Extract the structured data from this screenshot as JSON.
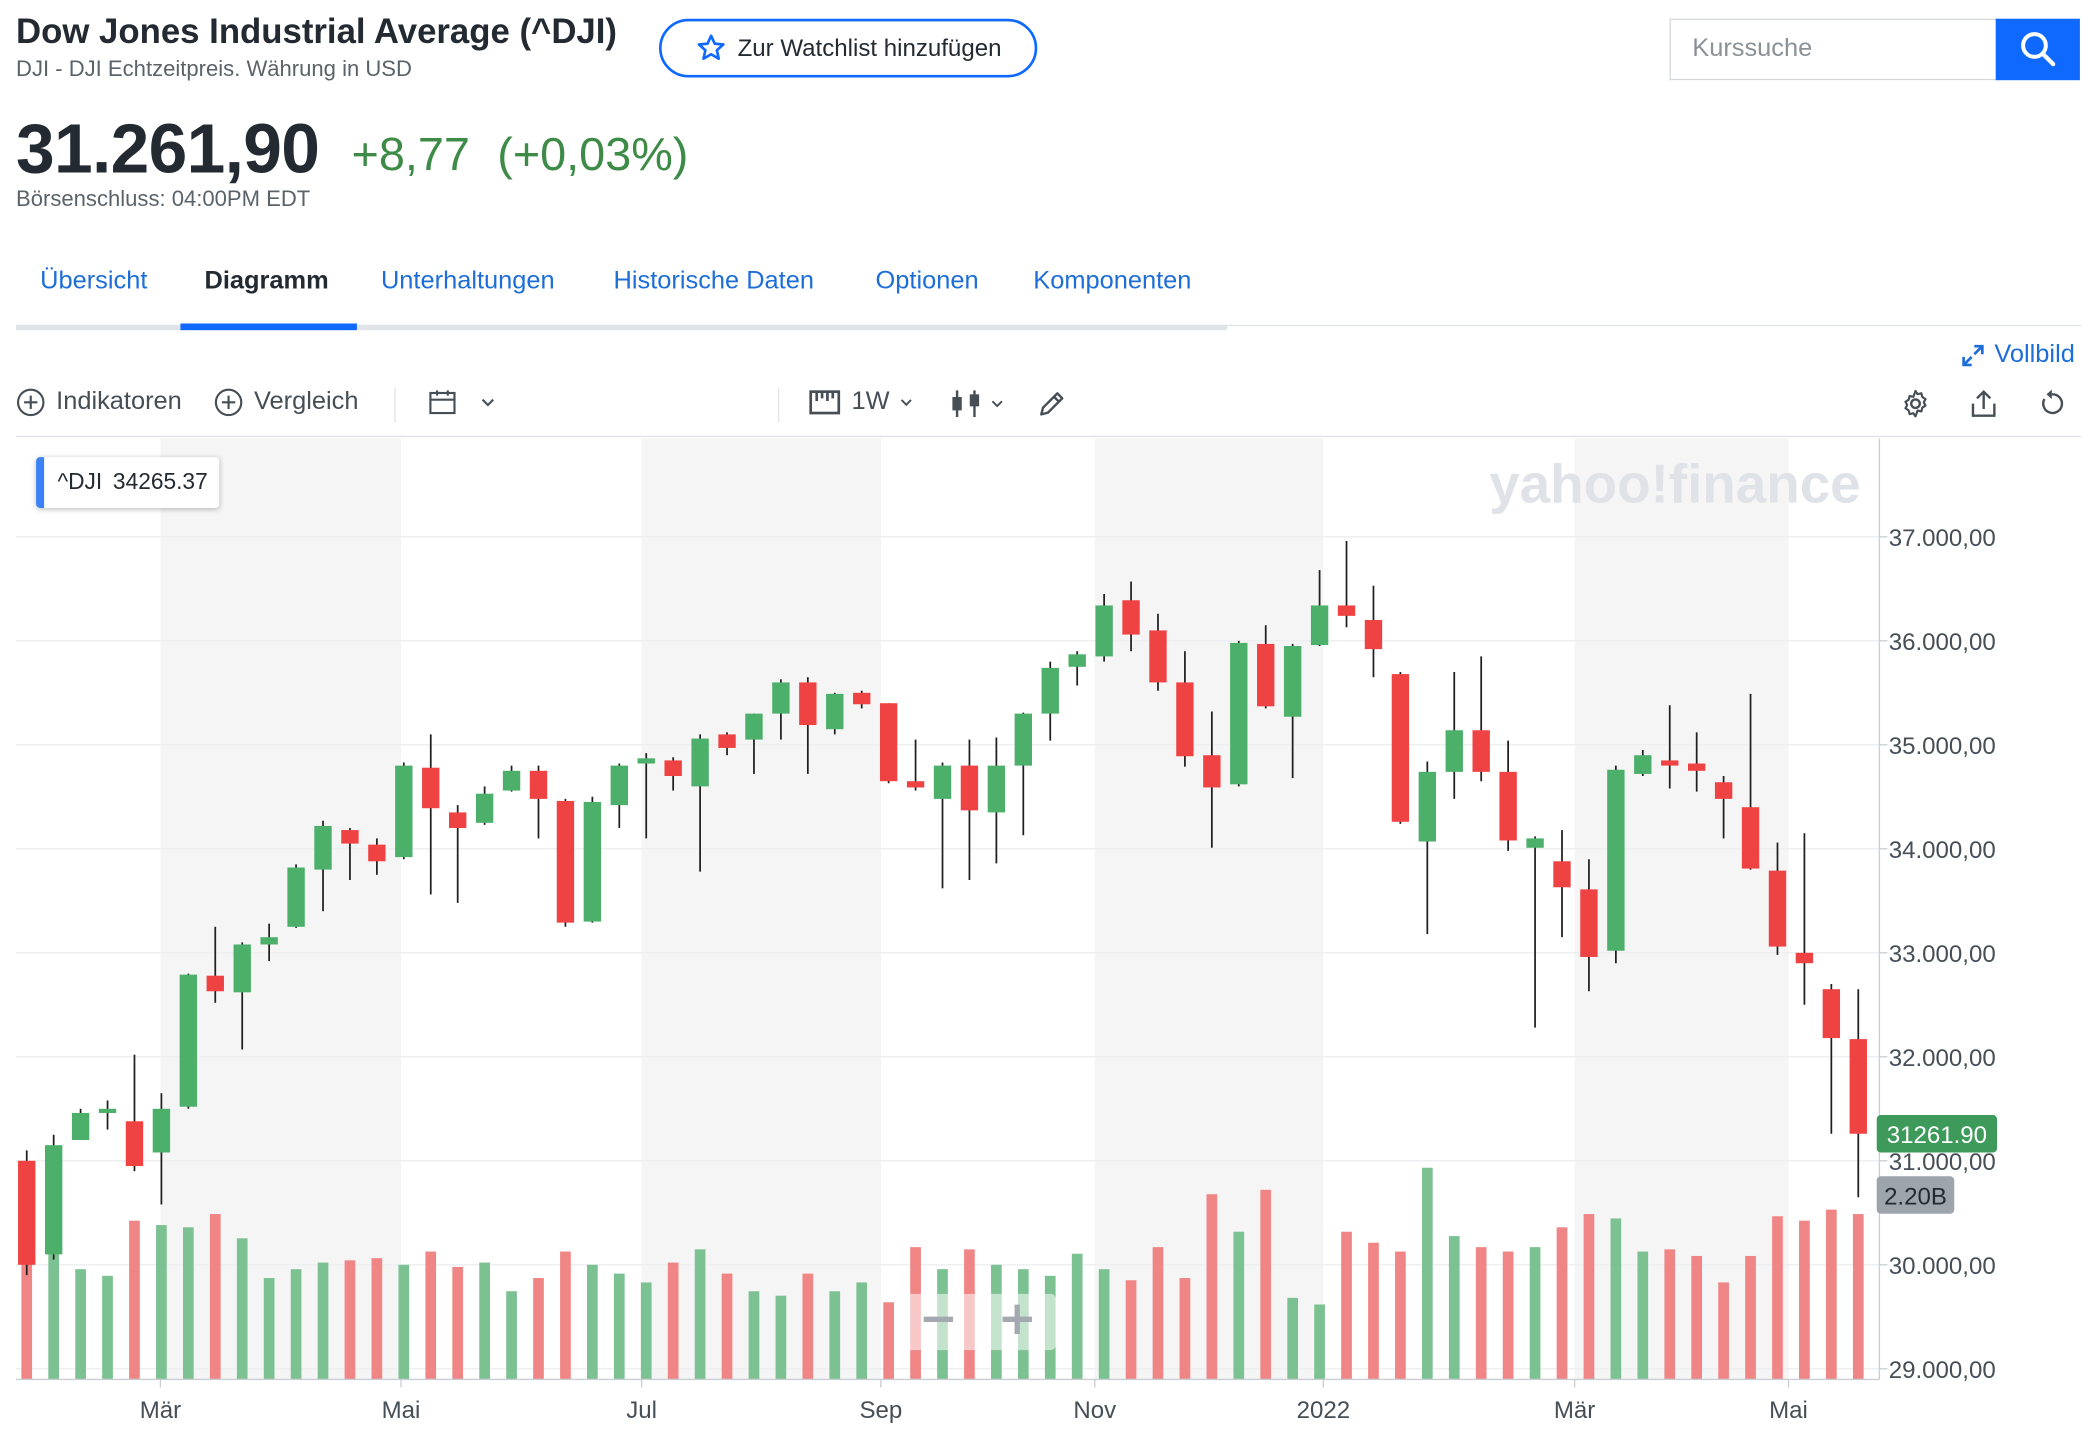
{
  "header": {
    "title": "Dow Jones Industrial Average (^DJI)",
    "subtitle": "DJI - DJI Echtzeitpreis. Währung in USD",
    "watchlist_label": "Zur Watchlist hinzufügen",
    "search_placeholder": "Kurssuche"
  },
  "quote": {
    "price": "31.261,90",
    "change": "+8,77",
    "change_pct": "(+0,03%)",
    "market_time": "Börsenschluss: 04:00PM EDT"
  },
  "tabs": [
    {
      "label": "Übersicht",
      "active": false
    },
    {
      "label": "Diagramm",
      "active": true
    },
    {
      "label": "Unterhaltungen",
      "active": false
    },
    {
      "label": "Historische Daten",
      "active": false
    },
    {
      "label": "Optionen",
      "active": false
    },
    {
      "label": "Komponenten",
      "active": false
    }
  ],
  "toolbar": {
    "fullscreen_label": "Vollbild",
    "indicators_label": "Indikatoren",
    "compare_label": "Vergleich",
    "interval_label": "1W"
  },
  "legend_tooltip": {
    "symbol": "^DJI",
    "value": "34265.37"
  },
  "watermark": "yahoo!finance",
  "colors": {
    "up": "#4caf6a",
    "down": "#ef4343",
    "accent": "#0f69ff",
    "change_positive": "#3d8b47"
  },
  "chart_data": {
    "type": "candlestick",
    "interval": "1W",
    "ylim": [
      28900,
      37600
    ],
    "y_ticks": [
      29000,
      30000,
      31000,
      32000,
      33000,
      34000,
      35000,
      36000,
      37000
    ],
    "y_tick_labels": [
      "29.000,00",
      "30.000,00",
      "31.000,00",
      "32.000,00",
      "33.000,00",
      "34.000,00",
      "35.000,00",
      "36.000,00",
      "37.000,00"
    ],
    "x_tick_labels": [
      "Mär",
      "Mai",
      "Jul",
      "Sep",
      "Nov",
      "2022",
      "Mär",
      "Mai"
    ],
    "last_price_label": "31261.90",
    "last_volume_label": "2.20B",
    "ohlc": [
      {
        "o": 31000,
        "h": 31100,
        "l": 29900,
        "c": 30000
      },
      {
        "o": 30100,
        "h": 31250,
        "l": 30050,
        "c": 31150
      },
      {
        "o": 31200,
        "h": 31500,
        "l": 31200,
        "c": 31460
      },
      {
        "o": 31460,
        "h": 31580,
        "l": 31300,
        "c": 31500
      },
      {
        "o": 31380,
        "h": 32020,
        "l": 30900,
        "c": 30950
      },
      {
        "o": 31080,
        "h": 31650,
        "l": 30580,
        "c": 31500
      },
      {
        "o": 31520,
        "h": 32800,
        "l": 31500,
        "c": 32790
      },
      {
        "o": 32780,
        "h": 33250,
        "l": 32520,
        "c": 32630
      },
      {
        "o": 32620,
        "h": 33100,
        "l": 32070,
        "c": 33080
      },
      {
        "o": 33080,
        "h": 33280,
        "l": 32920,
        "c": 33150
      },
      {
        "o": 33250,
        "h": 33850,
        "l": 33240,
        "c": 33820
      },
      {
        "o": 33800,
        "h": 34270,
        "l": 33400,
        "c": 34220
      },
      {
        "o": 34180,
        "h": 34200,
        "l": 33700,
        "c": 34050
      },
      {
        "o": 34040,
        "h": 34100,
        "l": 33750,
        "c": 33880
      },
      {
        "o": 33920,
        "h": 34830,
        "l": 33900,
        "c": 34800
      },
      {
        "o": 34780,
        "h": 35100,
        "l": 33560,
        "c": 34390
      },
      {
        "o": 34350,
        "h": 34420,
        "l": 33480,
        "c": 34200
      },
      {
        "o": 34250,
        "h": 34600,
        "l": 34230,
        "c": 34530
      },
      {
        "o": 34560,
        "h": 34800,
        "l": 34550,
        "c": 34750
      },
      {
        "o": 34750,
        "h": 34800,
        "l": 34100,
        "c": 34480
      },
      {
        "o": 34460,
        "h": 34480,
        "l": 33250,
        "c": 33290
      },
      {
        "o": 33300,
        "h": 34500,
        "l": 33290,
        "c": 34450
      },
      {
        "o": 34420,
        "h": 34820,
        "l": 34200,
        "c": 34800
      },
      {
        "o": 34820,
        "h": 34920,
        "l": 34100,
        "c": 34870
      },
      {
        "o": 34850,
        "h": 34880,
        "l": 34560,
        "c": 34700
      },
      {
        "o": 34600,
        "h": 35100,
        "l": 33780,
        "c": 35060
      },
      {
        "o": 35100,
        "h": 35120,
        "l": 34900,
        "c": 34970
      },
      {
        "o": 35050,
        "h": 35300,
        "l": 34720,
        "c": 35300
      },
      {
        "o": 35300,
        "h": 35630,
        "l": 35050,
        "c": 35600
      },
      {
        "o": 35600,
        "h": 35650,
        "l": 34720,
        "c": 35190
      },
      {
        "o": 35150,
        "h": 35500,
        "l": 35100,
        "c": 35490
      },
      {
        "o": 35500,
        "h": 35520,
        "l": 35350,
        "c": 35390
      },
      {
        "o": 35400,
        "h": 35400,
        "l": 34630,
        "c": 34650
      },
      {
        "o": 34650,
        "h": 35050,
        "l": 34560,
        "c": 34590
      },
      {
        "o": 34480,
        "h": 34830,
        "l": 33620,
        "c": 34800
      },
      {
        "o": 34800,
        "h": 35050,
        "l": 33700,
        "c": 34370
      },
      {
        "o": 34350,
        "h": 35070,
        "l": 33860,
        "c": 34800
      },
      {
        "o": 34800,
        "h": 35310,
        "l": 34130,
        "c": 35300
      },
      {
        "o": 35300,
        "h": 35800,
        "l": 35040,
        "c": 35740
      },
      {
        "o": 35750,
        "h": 35900,
        "l": 35570,
        "c": 35870
      },
      {
        "o": 35850,
        "h": 36450,
        "l": 35800,
        "c": 36340
      },
      {
        "o": 36390,
        "h": 36570,
        "l": 35900,
        "c": 36060
      },
      {
        "o": 36100,
        "h": 36260,
        "l": 35520,
        "c": 35600
      },
      {
        "o": 35600,
        "h": 35900,
        "l": 34790,
        "c": 34890
      },
      {
        "o": 34900,
        "h": 35320,
        "l": 34010,
        "c": 34590
      },
      {
        "o": 34620,
        "h": 36000,
        "l": 34600,
        "c": 35980
      },
      {
        "o": 35970,
        "h": 36150,
        "l": 35350,
        "c": 35370
      },
      {
        "o": 35270,
        "h": 35970,
        "l": 34680,
        "c": 35950
      },
      {
        "o": 35960,
        "h": 36680,
        "l": 35950,
        "c": 36340
      },
      {
        "o": 36340,
        "h": 36960,
        "l": 36130,
        "c": 36240
      },
      {
        "o": 36200,
        "h": 36530,
        "l": 35650,
        "c": 35920
      },
      {
        "o": 35680,
        "h": 35700,
        "l": 34240,
        "c": 34260
      },
      {
        "o": 34070,
        "h": 34840,
        "l": 33180,
        "c": 34740
      },
      {
        "o": 34740,
        "h": 35700,
        "l": 34480,
        "c": 35140
      },
      {
        "o": 35140,
        "h": 35850,
        "l": 34650,
        "c": 34740
      },
      {
        "o": 34740,
        "h": 35040,
        "l": 33980,
        "c": 34080
      },
      {
        "o": 34010,
        "h": 34120,
        "l": 32280,
        "c": 34100
      },
      {
        "o": 33880,
        "h": 34180,
        "l": 33150,
        "c": 33630
      },
      {
        "o": 33610,
        "h": 33900,
        "l": 32630,
        "c": 32960
      },
      {
        "o": 33020,
        "h": 34800,
        "l": 32900,
        "c": 34760
      },
      {
        "o": 34720,
        "h": 34950,
        "l": 34700,
        "c": 34900
      },
      {
        "o": 34850,
        "h": 35380,
        "l": 34580,
        "c": 34800
      },
      {
        "o": 34820,
        "h": 35120,
        "l": 34550,
        "c": 34750
      },
      {
        "o": 34640,
        "h": 34700,
        "l": 34100,
        "c": 34480
      },
      {
        "o": 34400,
        "h": 35490,
        "l": 33800,
        "c": 33810
      },
      {
        "o": 33790,
        "h": 34060,
        "l": 32980,
        "c": 33060
      },
      {
        "o": 33000,
        "h": 34150,
        "l": 32500,
        "c": 32900
      },
      {
        "o": 32650,
        "h": 32700,
        "l": 31260,
        "c": 32180
      },
      {
        "o": 32170,
        "h": 32650,
        "l": 30650,
        "c": 31260
      }
    ],
    "volume_scale_note": "relative",
    "volume": [
      {
        "v": 0.72,
        "d": "down"
      },
      {
        "v": 0.62,
        "d": "up"
      },
      {
        "v": 0.5,
        "d": "up"
      },
      {
        "v": 0.47,
        "d": "up"
      },
      {
        "v": 0.72,
        "d": "down"
      },
      {
        "v": 0.7,
        "d": "up"
      },
      {
        "v": 0.69,
        "d": "up"
      },
      {
        "v": 0.75,
        "d": "down"
      },
      {
        "v": 0.64,
        "d": "up"
      },
      {
        "v": 0.46,
        "d": "up"
      },
      {
        "v": 0.5,
        "d": "up"
      },
      {
        "v": 0.53,
        "d": "up"
      },
      {
        "v": 0.54,
        "d": "down"
      },
      {
        "v": 0.55,
        "d": "down"
      },
      {
        "v": 0.52,
        "d": "up"
      },
      {
        "v": 0.58,
        "d": "down"
      },
      {
        "v": 0.51,
        "d": "down"
      },
      {
        "v": 0.53,
        "d": "up"
      },
      {
        "v": 0.4,
        "d": "up"
      },
      {
        "v": 0.46,
        "d": "down"
      },
      {
        "v": 0.58,
        "d": "down"
      },
      {
        "v": 0.52,
        "d": "up"
      },
      {
        "v": 0.48,
        "d": "up"
      },
      {
        "v": 0.44,
        "d": "up"
      },
      {
        "v": 0.53,
        "d": "down"
      },
      {
        "v": 0.59,
        "d": "up"
      },
      {
        "v": 0.48,
        "d": "down"
      },
      {
        "v": 0.4,
        "d": "up"
      },
      {
        "v": 0.38,
        "d": "up"
      },
      {
        "v": 0.48,
        "d": "down"
      },
      {
        "v": 0.4,
        "d": "up"
      },
      {
        "v": 0.44,
        "d": "up"
      },
      {
        "v": 0.35,
        "d": "down"
      },
      {
        "v": 0.6,
        "d": "down"
      },
      {
        "v": 0.5,
        "d": "up"
      },
      {
        "v": 0.59,
        "d": "down"
      },
      {
        "v": 0.52,
        "d": "up"
      },
      {
        "v": 0.5,
        "d": "up"
      },
      {
        "v": 0.47,
        "d": "up"
      },
      {
        "v": 0.57,
        "d": "up"
      },
      {
        "v": 0.5,
        "d": "up"
      },
      {
        "v": 0.45,
        "d": "down"
      },
      {
        "v": 0.6,
        "d": "down"
      },
      {
        "v": 0.46,
        "d": "down"
      },
      {
        "v": 0.84,
        "d": "down"
      },
      {
        "v": 0.67,
        "d": "up"
      },
      {
        "v": 0.86,
        "d": "down"
      },
      {
        "v": 0.37,
        "d": "up"
      },
      {
        "v": 0.34,
        "d": "up"
      },
      {
        "v": 0.67,
        "d": "down"
      },
      {
        "v": 0.62,
        "d": "down"
      },
      {
        "v": 0.58,
        "d": "down"
      },
      {
        "v": 0.96,
        "d": "up"
      },
      {
        "v": 0.65,
        "d": "up"
      },
      {
        "v": 0.6,
        "d": "down"
      },
      {
        "v": 0.58,
        "d": "down"
      },
      {
        "v": 0.6,
        "d": "up"
      },
      {
        "v": 0.69,
        "d": "down"
      },
      {
        "v": 0.75,
        "d": "down"
      },
      {
        "v": 0.73,
        "d": "up"
      },
      {
        "v": 0.58,
        "d": "up"
      },
      {
        "v": 0.59,
        "d": "down"
      },
      {
        "v": 0.56,
        "d": "down"
      },
      {
        "v": 0.44,
        "d": "down"
      },
      {
        "v": 0.56,
        "d": "down"
      },
      {
        "v": 0.74,
        "d": "down"
      },
      {
        "v": 0.72,
        "d": "down"
      },
      {
        "v": 0.77,
        "d": "down"
      },
      {
        "v": 0.75,
        "d": "down"
      }
    ]
  }
}
